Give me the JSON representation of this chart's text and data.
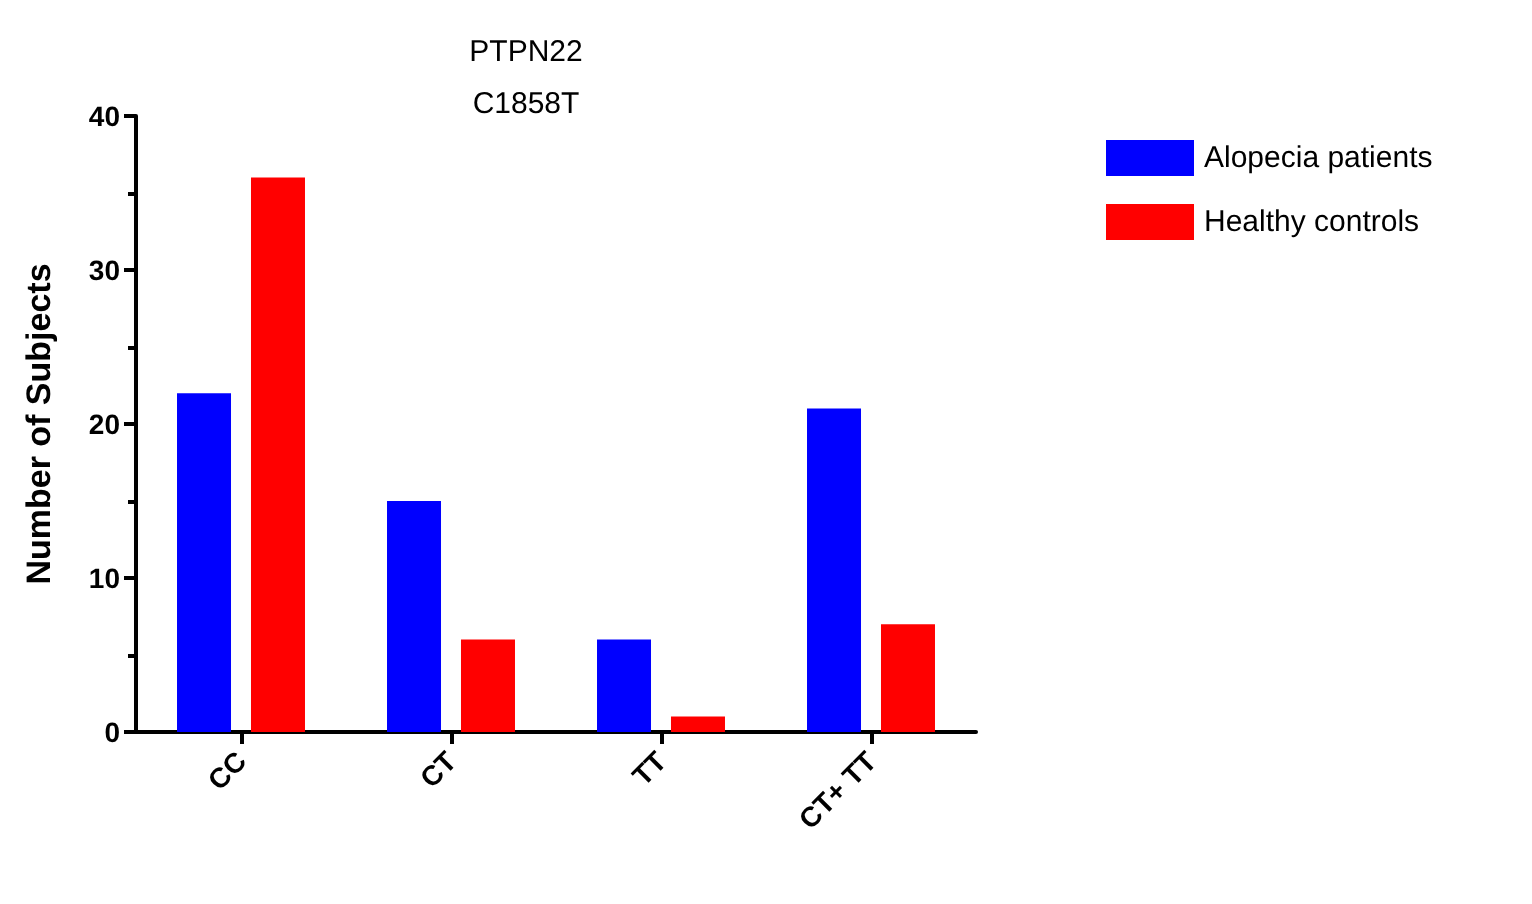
{
  "chart_data": {
    "type": "bar",
    "title": "PTPN22\nC1858T",
    "ylabel": "Number of Subjects",
    "categories": [
      "CC",
      "CT",
      "TT",
      "CT+ TT"
    ],
    "series": [
      {
        "name": "Alopecia patients",
        "color": "#0000ff",
        "values": [
          22,
          15,
          6,
          21
        ]
      },
      {
        "name": "Healthy controls",
        "color": "#ff0000",
        "values": [
          36,
          6,
          1,
          7
        ]
      }
    ],
    "ylim": [
      0,
      40
    ],
    "yticks": [
      0,
      10,
      20,
      30,
      40
    ],
    "grid": false,
    "legend": "top right"
  }
}
